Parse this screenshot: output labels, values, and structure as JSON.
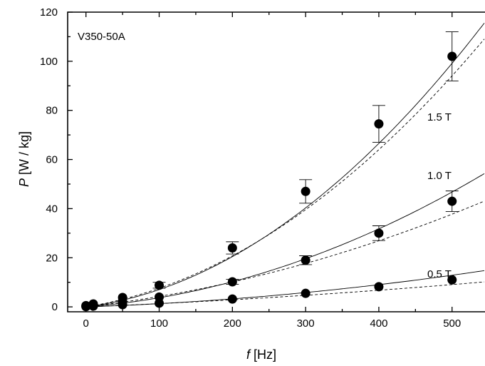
{
  "chart_data": {
    "type": "scatter",
    "title": "",
    "xlabel_italic": "f",
    "xlabel_unit": " [Hz]",
    "ylabel_italic": "P",
    "ylabel_unit": " [W / kg]",
    "xlim": [
      -25,
      545
    ],
    "ylim": [
      -2,
      120
    ],
    "xticks": [
      0,
      100,
      200,
      300,
      400,
      500
    ],
    "yticks": [
      0,
      20,
      40,
      60,
      80,
      100,
      120
    ],
    "minor_xticks": [
      50,
      150,
      250,
      350,
      450
    ],
    "minor_yticks": [
      10,
      30,
      50,
      70,
      90,
      110
    ],
    "grid": false,
    "annotation": "V350-50A",
    "series": [
      {
        "name": "1.5 T",
        "x": [
          0,
          10,
          50,
          100,
          200,
          300,
          400,
          500
        ],
        "y": [
          0.5,
          1.2,
          3.8,
          8.8,
          24,
          47,
          74.5,
          102
        ],
        "err": [
          0,
          0,
          0,
          1.2,
          2.5,
          4.8,
          7.5,
          10
        ],
        "fit_solid": [
          0.0383,
          0.00032
        ],
        "fit_dashed": [
          0.0476,
          0.000281
        ]
      },
      {
        "name": "1.0 T",
        "x": [
          0,
          10,
          50,
          100,
          200,
          300,
          400,
          500
        ],
        "y": [
          0.3,
          0.7,
          2.2,
          4.0,
          10.2,
          19,
          30,
          43
        ],
        "err": [
          0,
          0,
          0,
          0,
          1.0,
          1.8,
          3.0,
          4.2
        ],
        "fit_solid": [
          0.023,
          0.000141
        ],
        "fit_dashed": [
          0.0341,
          8.28e-05
        ]
      },
      {
        "name": "0.5 T",
        "x": [
          0,
          10,
          50,
          100,
          200,
          300,
          400,
          500
        ],
        "y": [
          0.1,
          0.3,
          0.9,
          1.5,
          3.2,
          5.5,
          8.2,
          11
        ],
        "err": [
          0,
          0,
          0,
          0,
          0,
          0,
          0,
          0
        ],
        "fit_solid": [
          0.01,
          3.15e-05
        ],
        "fit_dashed": [
          0.012,
          1.23e-05
        ]
      }
    ]
  }
}
